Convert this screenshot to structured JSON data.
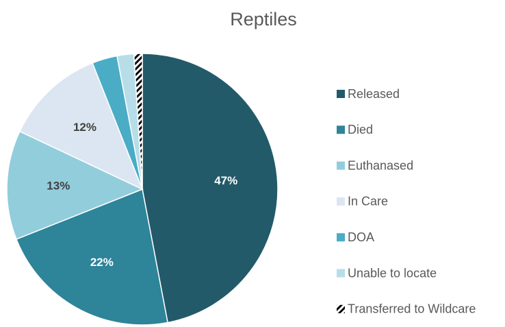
{
  "chart_data": {
    "type": "pie",
    "title": "Reptiles",
    "categories": [
      "Released",
      "Died",
      "Euthanased",
      "In Care",
      "DOA",
      "Unable to locate",
      "Transferred to Wildcare"
    ],
    "values": [
      47,
      22,
      13,
      12,
      3,
      2,
      1
    ],
    "value_labels": [
      "47%",
      "22%",
      "13%",
      "12%",
      null,
      null,
      null
    ],
    "colors": [
      "#235a6a",
      "#2e8499",
      "#92cddc",
      "#dce6f2",
      "#4bacc6",
      "#b7dee8",
      "#000000"
    ],
    "hatch": [
      false,
      false,
      false,
      false,
      false,
      false,
      true
    ],
    "legend": "right"
  }
}
